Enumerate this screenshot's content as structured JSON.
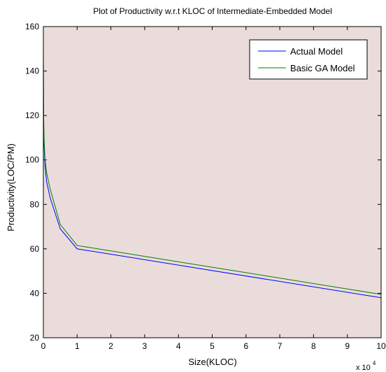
{
  "chart_data": {
    "type": "line",
    "title": "Plot of Productivity w.r.t KLOC of  Intermediate-Embedded Model",
    "xlabel": "Size(KLOC)",
    "ylabel": "Productivity(LOC/PM)",
    "x_multiplier_label": "x 10",
    "x_multiplier_exponent": "4",
    "xlim": [
      0,
      10
    ],
    "ylim": [
      20,
      160
    ],
    "xticks": [
      0,
      1,
      2,
      3,
      4,
      5,
      6,
      7,
      8,
      9,
      10
    ],
    "yticks": [
      20,
      40,
      60,
      80,
      100,
      120,
      140,
      160
    ],
    "grid": false,
    "legend_position": "top-right",
    "background_color": "#ebdcdc",
    "series": [
      {
        "name": "Actual Model",
        "color": "#0000ff",
        "x": [
          0.001,
          0.005,
          0.01,
          0.02,
          0.05,
          0.1,
          0.2,
          0.5,
          1,
          10
        ],
        "y": [
          143,
          126,
          116,
          107,
          97,
          90,
          83,
          69,
          60,
          38
        ]
      },
      {
        "name": "Basic GA Model",
        "color": "#008000",
        "x": [
          0.001,
          0.005,
          0.01,
          0.02,
          0.05,
          0.1,
          0.2,
          0.5,
          1,
          10
        ],
        "y": [
          148,
          130,
          119,
          110,
          100,
          94,
          87,
          71,
          61.5,
          39.5
        ]
      }
    ]
  }
}
